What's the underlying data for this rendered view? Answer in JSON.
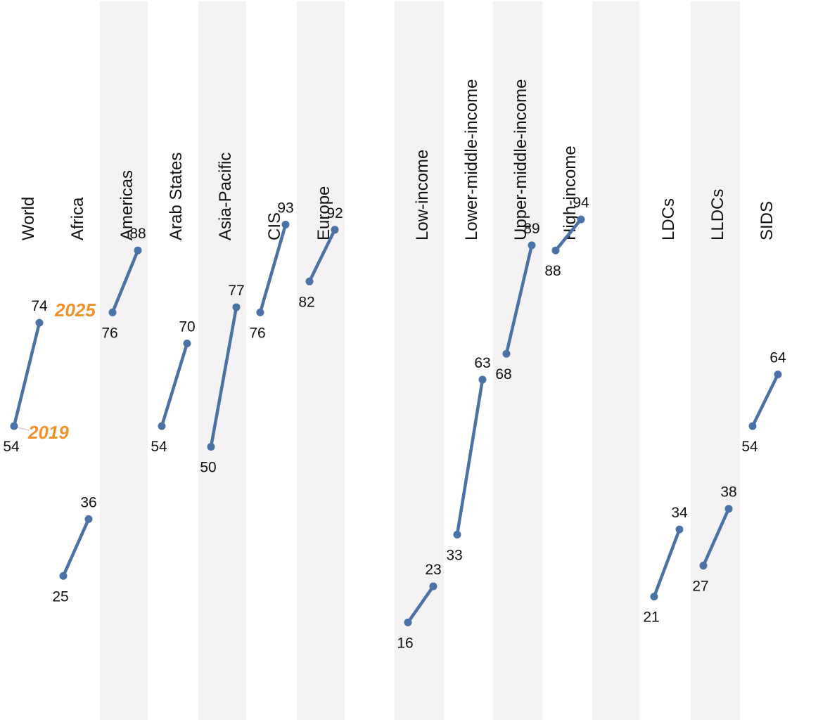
{
  "chart_data": {
    "type": "slope",
    "title": "",
    "years": [
      "2019",
      "2025"
    ],
    "year_label_color": "#F0922B",
    "line_color": "#4A72A6",
    "band_color": "#F4F2F3",
    "ylim": [
      0,
      100
    ],
    "categories": [
      {
        "name": "World",
        "group": "world",
        "values": [
          54,
          74
        ]
      },
      {
        "name": "Africa",
        "group": "region",
        "values": [
          25,
          36
        ]
      },
      {
        "name": "Americas",
        "group": "region",
        "values": [
          76,
          88
        ]
      },
      {
        "name": "Arab States",
        "group": "region",
        "values": [
          54,
          70
        ]
      },
      {
        "name": "Asia-Pacific",
        "group": "region",
        "values": [
          50,
          77
        ]
      },
      {
        "name": "CIS",
        "group": "region",
        "values": [
          76,
          93
        ]
      },
      {
        "name": "Europe",
        "group": "region",
        "values": [
          82,
          92
        ]
      },
      {
        "name": "Low-income",
        "group": "income",
        "values": [
          16,
          23
        ]
      },
      {
        "name": "Lower-middle-income",
        "group": "income",
        "values": [
          33,
          63
        ]
      },
      {
        "name": "Upper-middle-income",
        "group": "income",
        "values": [
          68,
          89
        ]
      },
      {
        "name": "High-income",
        "group": "income",
        "values": [
          88,
          94
        ]
      },
      {
        "name": "LDCs",
        "group": "special",
        "values": [
          21,
          34
        ]
      },
      {
        "name": "LLDCs",
        "group": "special",
        "values": [
          27,
          38
        ]
      },
      {
        "name": "SIDS",
        "group": "special",
        "values": [
          54,
          64
        ]
      }
    ]
  }
}
